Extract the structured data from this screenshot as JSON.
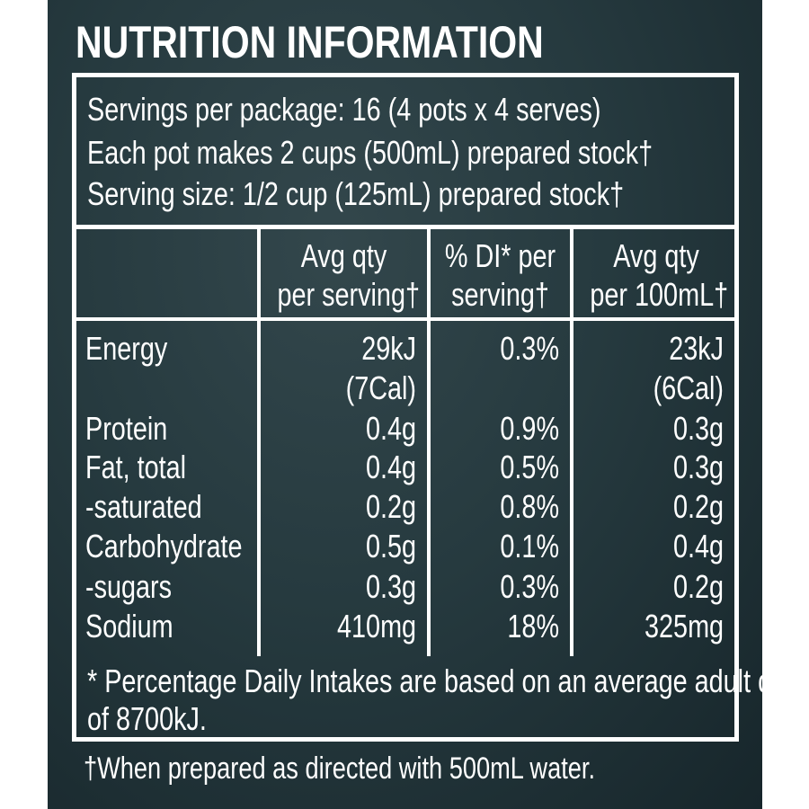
{
  "title": "NUTRITION INFORMATION",
  "servings": [
    "Servings per package: 16 (4 pots x 4 serves)",
    "Each pot makes 2 cups (500mL) prepared stock†",
    "Serving size: 1/2 cup (125mL) prepared stock†"
  ],
  "headers": [
    [
      "Avg qty",
      "per serving†"
    ],
    [
      "% DI* per",
      "serving†"
    ],
    [
      "Avg qty",
      "per 100mL†"
    ]
  ],
  "rows": [
    {
      "name": "Energy",
      "per_serving": "29kJ",
      "per_serving_sub": "(7Cal)",
      "di": "0.3%",
      "per_100": "23kJ",
      "per_100_sub": "(6Cal)"
    },
    {
      "name": "Protein",
      "per_serving": "0.4g",
      "di": "0.9%",
      "per_100": "0.3g"
    },
    {
      "name": "Fat, total",
      "per_serving": "0.4g",
      "di": "0.5%",
      "per_100": "0.3g"
    },
    {
      "name": "-saturated",
      "per_serving": "0.2g",
      "di": "0.8%",
      "per_100": "0.2g"
    },
    {
      "name": "Carbohydrate",
      "per_serving": "0.5g",
      "di": "0.1%",
      "per_100": "0.4g"
    },
    {
      "name": "-sugars",
      "per_serving": "0.3g",
      "di": "0.3%",
      "per_100": "0.2g"
    },
    {
      "name": "Sodium",
      "per_serving": "410mg",
      "di": "18%",
      "per_100": "325mg"
    }
  ],
  "footnote": [
    "* Percentage Daily Intakes are based on an average adult diet",
    "of 8700kJ."
  ],
  "dagger_note": "†When prepared as directed with 500mL water.",
  "colors": {
    "background": "#263a3f",
    "text": "#ffffff"
  }
}
